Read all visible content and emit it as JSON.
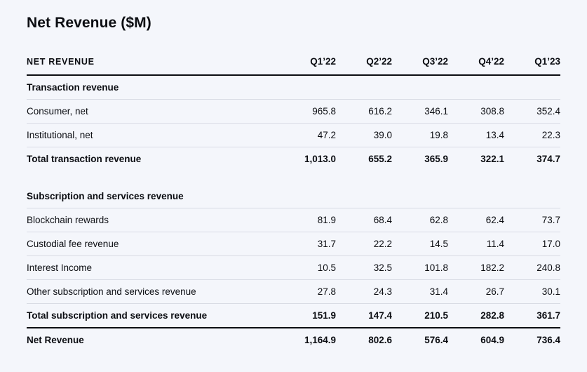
{
  "page": {
    "title": "Net Revenue ($M)"
  },
  "table": {
    "header_label": "NET REVENUE",
    "columns": [
      "Q1’22",
      "Q2’22",
      "Q3’22",
      "Q4’22",
      "Q1’23"
    ],
    "rows": [
      {
        "label": "Transaction revenue",
        "values": [
          "",
          "",
          "",
          "",
          ""
        ]
      },
      {
        "label": "Consumer, net",
        "values": [
          "965.8",
          "616.2",
          "346.1",
          "308.8",
          "352.4"
        ]
      },
      {
        "label": "Institutional, net",
        "values": [
          "47.2",
          "39.0",
          "19.8",
          "13.4",
          "22.3"
        ]
      },
      {
        "label": "Total transaction revenue",
        "values": [
          "1,013.0",
          "655.2",
          "365.9",
          "322.1",
          "374.7"
        ]
      },
      {
        "label": "Subscription and services revenue",
        "values": [
          "",
          "",
          "",
          "",
          ""
        ]
      },
      {
        "label": "Blockchain rewards",
        "values": [
          "81.9",
          "68.4",
          "62.8",
          "62.4",
          "73.7"
        ]
      },
      {
        "label": "Custodial fee revenue",
        "values": [
          "31.7",
          "22.2",
          "14.5",
          "11.4",
          "17.0"
        ]
      },
      {
        "label": "Interest Income",
        "values": [
          "10.5",
          "32.5",
          "101.8",
          "182.2",
          "240.8"
        ]
      },
      {
        "label": "Other subscription and services revenue",
        "values": [
          "27.8",
          "24.3",
          "31.4",
          "26.7",
          "30.1"
        ]
      },
      {
        "label": "Total subscription and services revenue",
        "values": [
          "151.9",
          "147.4",
          "210.5",
          "282.8",
          "361.7"
        ]
      },
      {
        "label": "Net Revenue",
        "values": [
          "1,164.9",
          "802.6",
          "576.4",
          "604.9",
          "736.4"
        ]
      }
    ]
  },
  "colors": {
    "background": "#f4f6fb",
    "text": "#0b0d12",
    "thin_rule": "#d8dbe4",
    "thick_rule": "#0b0d12"
  },
  "chart_data": {
    "type": "table",
    "title": "Net Revenue ($M)",
    "categories": [
      "Q1'22",
      "Q2'22",
      "Q3'22",
      "Q4'22",
      "Q1'23"
    ],
    "series": [
      {
        "name": "Consumer, net",
        "values": [
          965.8,
          616.2,
          346.1,
          308.8,
          352.4
        ]
      },
      {
        "name": "Institutional, net",
        "values": [
          47.2,
          39.0,
          19.8,
          13.4,
          22.3
        ]
      },
      {
        "name": "Total transaction revenue",
        "values": [
          1013.0,
          655.2,
          365.9,
          322.1,
          374.7
        ]
      },
      {
        "name": "Blockchain rewards",
        "values": [
          81.9,
          68.4,
          62.8,
          62.4,
          73.7
        ]
      },
      {
        "name": "Custodial fee revenue",
        "values": [
          31.7,
          22.2,
          14.5,
          11.4,
          17.0
        ]
      },
      {
        "name": "Interest Income",
        "values": [
          10.5,
          32.5,
          101.8,
          182.2,
          240.8
        ]
      },
      {
        "name": "Other subscription and services revenue",
        "values": [
          27.8,
          24.3,
          31.4,
          26.7,
          30.1
        ]
      },
      {
        "name": "Total subscription and services revenue",
        "values": [
          151.9,
          147.4,
          210.5,
          282.8,
          361.7
        ]
      },
      {
        "name": "Net Revenue",
        "values": [
          1164.9,
          802.6,
          576.4,
          604.9,
          736.4
        ]
      }
    ],
    "groups": [
      {
        "section": "Transaction revenue",
        "members": [
          "Consumer, net",
          "Institutional, net",
          "Total transaction revenue"
        ]
      },
      {
        "section": "Subscription and services revenue",
        "members": [
          "Blockchain rewards",
          "Custodial fee revenue",
          "Interest Income",
          "Other subscription and services revenue",
          "Total subscription and services revenue"
        ]
      }
    ]
  }
}
